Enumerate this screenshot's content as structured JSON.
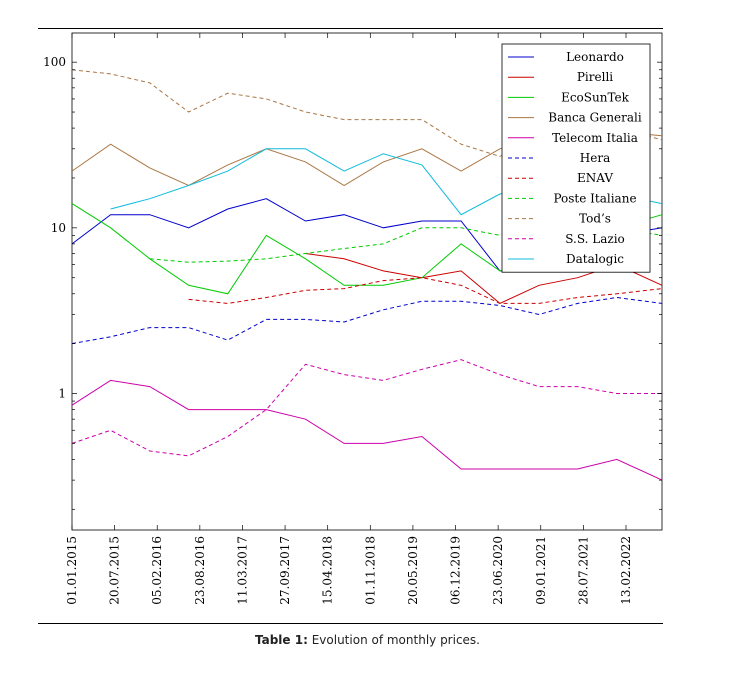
{
  "chart_data": {
    "type": "line",
    "y_scale": "log",
    "ylim": [
      0.15,
      150
    ],
    "ytick_labels": [
      "1",
      "10",
      "100"
    ],
    "x_range": [
      "2015-01-01",
      "2022-08-01"
    ],
    "xtick_labels": [
      "01.01.2015",
      "20.07.2015",
      "05.02.2016",
      "23.08.2016",
      "11.03.2017",
      "27.09.2017",
      "15.04.2018",
      "01.11.2018",
      "20.05.2019",
      "06.12.2019",
      "23.06.2020",
      "09.01.2021",
      "28.07.2021",
      "13.02.2022"
    ],
    "x_dates": [
      "2015-01-01",
      "2015-07-01",
      "2016-01-01",
      "2016-07-01",
      "2017-01-01",
      "2017-07-01",
      "2018-01-01",
      "2018-07-01",
      "2019-01-01",
      "2019-07-01",
      "2020-01-01",
      "2020-07-01",
      "2021-01-01",
      "2021-07-01",
      "2022-01-01",
      "2022-08-01"
    ],
    "grid": false,
    "legend_position": "top-right",
    "series": [
      {
        "name": "Leonardo",
        "color": "#0000cc",
        "dash": "solid",
        "values": [
          8,
          12,
          12,
          10,
          13,
          15,
          11,
          12,
          10,
          11,
          11,
          5.5,
          5.5,
          7,
          9,
          10
        ]
      },
      {
        "name": "Pirelli",
        "color": "#cc0000",
        "dash": "solid",
        "values": [
          null,
          null,
          null,
          null,
          null,
          null,
          7,
          6.5,
          5.5,
          5,
          5.5,
          3.5,
          4.5,
          5,
          6,
          4.5
        ]
      },
      {
        "name": "EcoSunTek",
        "color": "#00cc00",
        "dash": "solid",
        "values": [
          14,
          10,
          6.5,
          4.5,
          4,
          9,
          6.5,
          4.5,
          4.5,
          5,
          8,
          5.5,
          6,
          7,
          10,
          12
        ]
      },
      {
        "name": "Banca Generali",
        "color": "#aa7744",
        "dash": "solid",
        "values": [
          22,
          32,
          23,
          18,
          24,
          30,
          25,
          18,
          25,
          30,
          22,
          30,
          34,
          30,
          38,
          36
        ]
      },
      {
        "name": "Telecom Italia",
        "color": "#cc00aa",
        "dash": "solid",
        "values": [
          0.85,
          1.2,
          1.1,
          0.8,
          0.8,
          0.8,
          0.7,
          0.5,
          0.5,
          0.55,
          0.35,
          0.35,
          0.35,
          0.35,
          0.4,
          0.3
        ]
      },
      {
        "name": "Hera",
        "color": "#0000cc",
        "dash": "dashed",
        "values": [
          2,
          2.2,
          2.5,
          2.5,
          2.1,
          2.8,
          2.8,
          2.7,
          3.2,
          3.6,
          3.6,
          3.4,
          3,
          3.5,
          3.8,
          3.5
        ]
      },
      {
        "name": "ENAV",
        "color": "#cc0000",
        "dash": "dashed",
        "values": [
          null,
          null,
          null,
          3.7,
          3.5,
          3.8,
          4.2,
          4.3,
          4.8,
          5,
          4.5,
          3.5,
          3.5,
          3.8,
          4,
          4.3
        ]
      },
      {
        "name": "Poste Italiane",
        "color": "#00cc00",
        "dash": "dashed",
        "values": [
          null,
          null,
          6.5,
          6.2,
          6.3,
          6.5,
          7,
          7.5,
          8,
          10,
          10,
          9,
          9,
          10,
          10,
          9
        ]
      },
      {
        "name": "Tod’s",
        "color": "#aa7744",
        "dash": "dashed",
        "values": [
          90,
          85,
          75,
          50,
          65,
          60,
          50,
          45,
          45,
          45,
          32,
          27,
          35,
          40,
          40,
          34
        ]
      },
      {
        "name": "S.S. Lazio",
        "color": "#cc00aa",
        "dash": "dashed",
        "values": [
          0.5,
          0.6,
          0.45,
          0.42,
          0.55,
          0.8,
          1.5,
          1.3,
          1.2,
          1.4,
          1.6,
          1.3,
          1.1,
          1.1,
          1.0,
          1.0
        ]
      },
      {
        "name": "Datalogic",
        "color": "#11bbdd",
        "dash": "solid",
        "values": [
          null,
          13,
          15,
          18,
          22,
          30,
          30,
          22,
          28,
          24,
          12,
          16,
          18,
          16,
          16,
          14
        ]
      }
    ]
  },
  "caption": {
    "label": "Table 1:",
    "text": "Evolution of monthly prices."
  }
}
